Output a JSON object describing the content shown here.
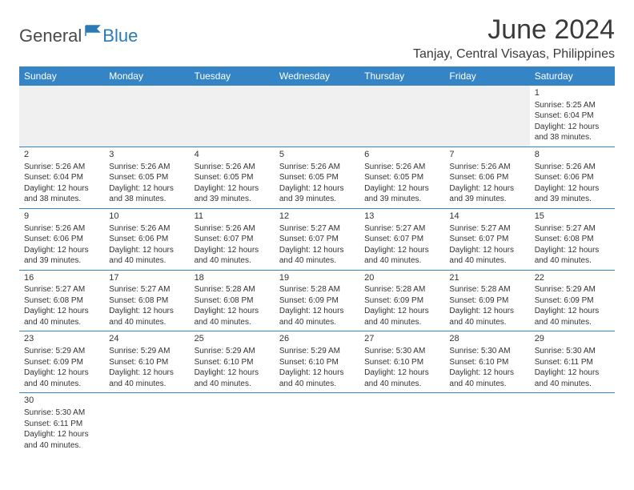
{
  "brand": {
    "part1": "General",
    "part2": "Blue"
  },
  "title": "June 2024",
  "location": "Tanjay, Central Visayas, Philippines",
  "colors": {
    "header_bg": "#3585c6",
    "header_text": "#ffffff",
    "cell_border": "#3585c6",
    "empty_bg": "#f0f0f0",
    "text": "#333333",
    "brand_gray": "#4a4a4a",
    "brand_blue": "#2a7ab8"
  },
  "typography": {
    "title_fontsize": 34,
    "location_fontsize": 16,
    "dayhead_fontsize": 12,
    "cell_fontsize": 10
  },
  "day_headers": [
    "Sunday",
    "Monday",
    "Tuesday",
    "Wednesday",
    "Thursday",
    "Friday",
    "Saturday"
  ],
  "weeks": [
    [
      null,
      null,
      null,
      null,
      null,
      null,
      {
        "n": "1",
        "sr": "Sunrise: 5:25 AM",
        "ss": "Sunset: 6:04 PM",
        "d1": "Daylight: 12 hours",
        "d2": "and 38 minutes."
      }
    ],
    [
      {
        "n": "2",
        "sr": "Sunrise: 5:26 AM",
        "ss": "Sunset: 6:04 PM",
        "d1": "Daylight: 12 hours",
        "d2": "and 38 minutes."
      },
      {
        "n": "3",
        "sr": "Sunrise: 5:26 AM",
        "ss": "Sunset: 6:05 PM",
        "d1": "Daylight: 12 hours",
        "d2": "and 38 minutes."
      },
      {
        "n": "4",
        "sr": "Sunrise: 5:26 AM",
        "ss": "Sunset: 6:05 PM",
        "d1": "Daylight: 12 hours",
        "d2": "and 39 minutes."
      },
      {
        "n": "5",
        "sr": "Sunrise: 5:26 AM",
        "ss": "Sunset: 6:05 PM",
        "d1": "Daylight: 12 hours",
        "d2": "and 39 minutes."
      },
      {
        "n": "6",
        "sr": "Sunrise: 5:26 AM",
        "ss": "Sunset: 6:05 PM",
        "d1": "Daylight: 12 hours",
        "d2": "and 39 minutes."
      },
      {
        "n": "7",
        "sr": "Sunrise: 5:26 AM",
        "ss": "Sunset: 6:06 PM",
        "d1": "Daylight: 12 hours",
        "d2": "and 39 minutes."
      },
      {
        "n": "8",
        "sr": "Sunrise: 5:26 AM",
        "ss": "Sunset: 6:06 PM",
        "d1": "Daylight: 12 hours",
        "d2": "and 39 minutes."
      }
    ],
    [
      {
        "n": "9",
        "sr": "Sunrise: 5:26 AM",
        "ss": "Sunset: 6:06 PM",
        "d1": "Daylight: 12 hours",
        "d2": "and 39 minutes."
      },
      {
        "n": "10",
        "sr": "Sunrise: 5:26 AM",
        "ss": "Sunset: 6:06 PM",
        "d1": "Daylight: 12 hours",
        "d2": "and 40 minutes."
      },
      {
        "n": "11",
        "sr": "Sunrise: 5:26 AM",
        "ss": "Sunset: 6:07 PM",
        "d1": "Daylight: 12 hours",
        "d2": "and 40 minutes."
      },
      {
        "n": "12",
        "sr": "Sunrise: 5:27 AM",
        "ss": "Sunset: 6:07 PM",
        "d1": "Daylight: 12 hours",
        "d2": "and 40 minutes."
      },
      {
        "n": "13",
        "sr": "Sunrise: 5:27 AM",
        "ss": "Sunset: 6:07 PM",
        "d1": "Daylight: 12 hours",
        "d2": "and 40 minutes."
      },
      {
        "n": "14",
        "sr": "Sunrise: 5:27 AM",
        "ss": "Sunset: 6:07 PM",
        "d1": "Daylight: 12 hours",
        "d2": "and 40 minutes."
      },
      {
        "n": "15",
        "sr": "Sunrise: 5:27 AM",
        "ss": "Sunset: 6:08 PM",
        "d1": "Daylight: 12 hours",
        "d2": "and 40 minutes."
      }
    ],
    [
      {
        "n": "16",
        "sr": "Sunrise: 5:27 AM",
        "ss": "Sunset: 6:08 PM",
        "d1": "Daylight: 12 hours",
        "d2": "and 40 minutes."
      },
      {
        "n": "17",
        "sr": "Sunrise: 5:27 AM",
        "ss": "Sunset: 6:08 PM",
        "d1": "Daylight: 12 hours",
        "d2": "and 40 minutes."
      },
      {
        "n": "18",
        "sr": "Sunrise: 5:28 AM",
        "ss": "Sunset: 6:08 PM",
        "d1": "Daylight: 12 hours",
        "d2": "and 40 minutes."
      },
      {
        "n": "19",
        "sr": "Sunrise: 5:28 AM",
        "ss": "Sunset: 6:09 PM",
        "d1": "Daylight: 12 hours",
        "d2": "and 40 minutes."
      },
      {
        "n": "20",
        "sr": "Sunrise: 5:28 AM",
        "ss": "Sunset: 6:09 PM",
        "d1": "Daylight: 12 hours",
        "d2": "and 40 minutes."
      },
      {
        "n": "21",
        "sr": "Sunrise: 5:28 AM",
        "ss": "Sunset: 6:09 PM",
        "d1": "Daylight: 12 hours",
        "d2": "and 40 minutes."
      },
      {
        "n": "22",
        "sr": "Sunrise: 5:29 AM",
        "ss": "Sunset: 6:09 PM",
        "d1": "Daylight: 12 hours",
        "d2": "and 40 minutes."
      }
    ],
    [
      {
        "n": "23",
        "sr": "Sunrise: 5:29 AM",
        "ss": "Sunset: 6:09 PM",
        "d1": "Daylight: 12 hours",
        "d2": "and 40 minutes."
      },
      {
        "n": "24",
        "sr": "Sunrise: 5:29 AM",
        "ss": "Sunset: 6:10 PM",
        "d1": "Daylight: 12 hours",
        "d2": "and 40 minutes."
      },
      {
        "n": "25",
        "sr": "Sunrise: 5:29 AM",
        "ss": "Sunset: 6:10 PM",
        "d1": "Daylight: 12 hours",
        "d2": "and 40 minutes."
      },
      {
        "n": "26",
        "sr": "Sunrise: 5:29 AM",
        "ss": "Sunset: 6:10 PM",
        "d1": "Daylight: 12 hours",
        "d2": "and 40 minutes."
      },
      {
        "n": "27",
        "sr": "Sunrise: 5:30 AM",
        "ss": "Sunset: 6:10 PM",
        "d1": "Daylight: 12 hours",
        "d2": "and 40 minutes."
      },
      {
        "n": "28",
        "sr": "Sunrise: 5:30 AM",
        "ss": "Sunset: 6:10 PM",
        "d1": "Daylight: 12 hours",
        "d2": "and 40 minutes."
      },
      {
        "n": "29",
        "sr": "Sunrise: 5:30 AM",
        "ss": "Sunset: 6:11 PM",
        "d1": "Daylight: 12 hours",
        "d2": "and 40 minutes."
      }
    ],
    [
      {
        "n": "30",
        "sr": "Sunrise: 5:30 AM",
        "ss": "Sunset: 6:11 PM",
        "d1": "Daylight: 12 hours",
        "d2": "and 40 minutes."
      },
      null,
      null,
      null,
      null,
      null,
      null
    ]
  ]
}
